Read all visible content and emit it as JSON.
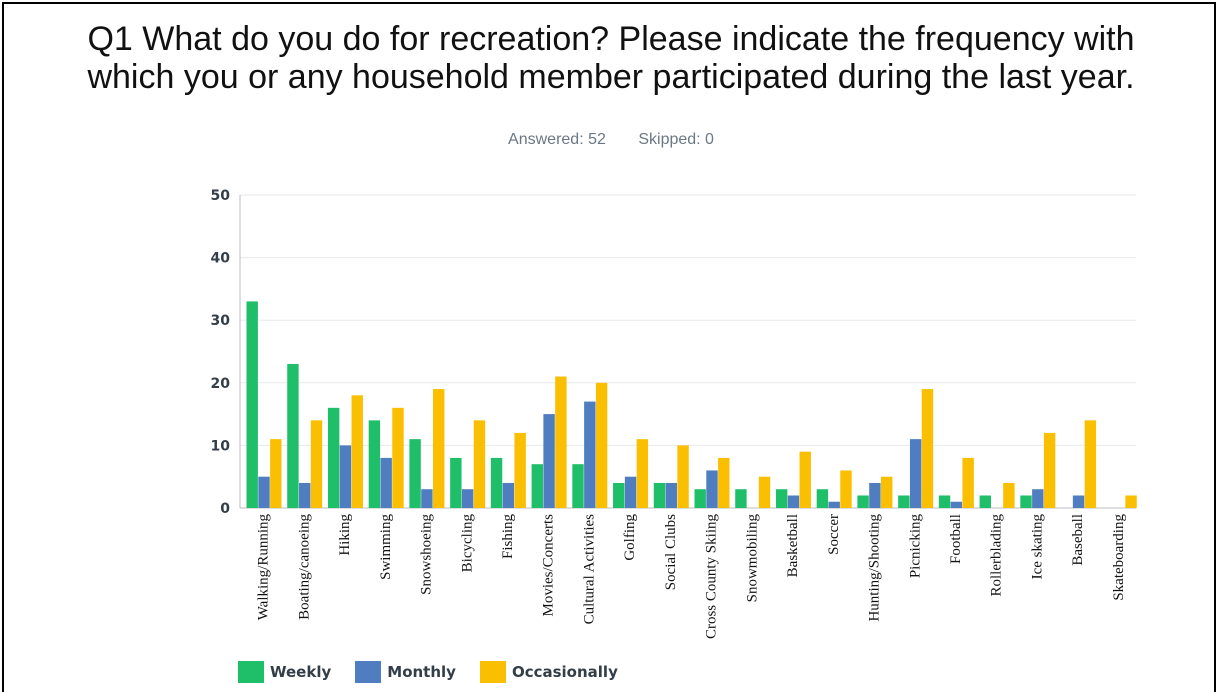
{
  "header": {
    "title_line1": "Q1 What do you do for recreation? Please indicate the frequency with",
    "title_line2": "which you or any household member participated during the last year.",
    "answered": "Answered: 52",
    "skipped": "Skipped: 0"
  },
  "colors": {
    "Weekly": "#1fbf6a",
    "Monthly": "#4f7dbf",
    "Occasionally": "#f9bf00"
  },
  "chart_data": {
    "type": "bar",
    "categories": [
      "Walking/Running",
      "Boating/canoeing",
      "Hiking",
      "Swimming",
      "Snowshoeing",
      "Bicycling",
      "Fishing",
      "Movies/Concerts",
      "Cultural Activities",
      "Golfing",
      "Social Clubs",
      "Cross County Skiing",
      "Snowmobiling",
      "Basketball",
      "Soccer",
      "Hunting/Shooting",
      "Picnicking",
      "Football",
      "Rollerblading",
      "Ice skating",
      "Baseball",
      "Skateboarding"
    ],
    "series": [
      {
        "name": "Weekly",
        "values": [
          33,
          23,
          16,
          14,
          11,
          8,
          8,
          7,
          7,
          4,
          4,
          3,
          3,
          3,
          3,
          2,
          2,
          2,
          2,
          2,
          0,
          0
        ]
      },
      {
        "name": "Monthly",
        "values": [
          5,
          4,
          10,
          8,
          3,
          3,
          4,
          15,
          17,
          5,
          4,
          6,
          0,
          2,
          1,
          4,
          11,
          1,
          0,
          3,
          2,
          0
        ]
      },
      {
        "name": "Occasionally",
        "values": [
          11,
          14,
          18,
          16,
          19,
          14,
          12,
          21,
          20,
          11,
          10,
          8,
          5,
          9,
          6,
          5,
          19,
          8,
          4,
          12,
          14,
          2
        ]
      }
    ],
    "yticks": [
      0,
      10,
      20,
      30,
      40,
      50
    ],
    "ylim": [
      0,
      50
    ],
    "grid": true,
    "legend_position": "bottom-left"
  }
}
